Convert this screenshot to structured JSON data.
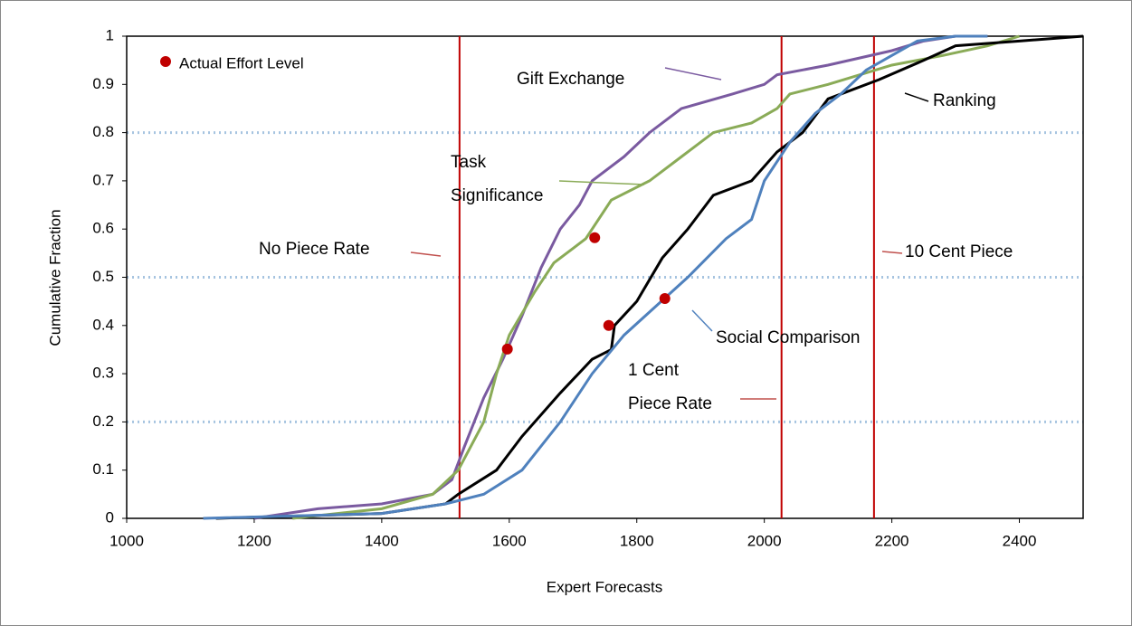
{
  "chart_data": {
    "type": "line",
    "xlabel": "Expert Forecasts",
    "ylabel": "Cumulative Fraction",
    "xlim": [
      1000,
      2500
    ],
    "xticks": [
      1000,
      1200,
      1400,
      1600,
      1800,
      2000,
      2200,
      2400
    ],
    "ylim": [
      0,
      1
    ],
    "yticks": [
      0,
      0.1,
      0.2,
      0.3,
      0.4,
      0.5,
      0.6,
      0.7,
      0.8,
      0.9,
      1
    ],
    "grid_values": [
      0.2,
      0.5,
      0.8
    ],
    "grid_color": "#a6c4e0",
    "vlines": [
      1522,
      2027,
      2172
    ],
    "vline_color": "#c00000",
    "series": [
      {
        "name": "Gift Exchange",
        "color": "#7a5aa0",
        "x": [
          1200,
          1300,
          1400,
          1480,
          1510,
          1530,
          1560,
          1590,
          1620,
          1650,
          1680,
          1710,
          1730,
          1780,
          1820,
          1870,
          1950,
          2000,
          2020,
          2100,
          2200,
          2250,
          2300,
          2350
        ],
        "values": [
          0,
          0.02,
          0.03,
          0.05,
          0.08,
          0.15,
          0.25,
          0.33,
          0.42,
          0.52,
          0.6,
          0.65,
          0.7,
          0.75,
          0.8,
          0.85,
          0.88,
          0.9,
          0.92,
          0.94,
          0.97,
          0.99,
          1,
          1
        ]
      },
      {
        "name": "Task Significance",
        "color": "#8aab57",
        "x": [
          1260,
          1400,
          1480,
          1520,
          1560,
          1580,
          1600,
          1640,
          1670,
          1720,
          1760,
          1820,
          1870,
          1920,
          1980,
          2020,
          2040,
          2100,
          2200,
          2280,
          2350,
          2400
        ],
        "values": [
          0,
          0.02,
          0.05,
          0.1,
          0.2,
          0.3,
          0.38,
          0.47,
          0.53,
          0.58,
          0.66,
          0.7,
          0.75,
          0.8,
          0.82,
          0.85,
          0.88,
          0.9,
          0.94,
          0.96,
          0.98,
          1
        ]
      },
      {
        "name": "Ranking",
        "color": "#000000",
        "x": [
          1140,
          1400,
          1500,
          1520,
          1580,
          1620,
          1680,
          1730,
          1760,
          1765,
          1800,
          1840,
          1880,
          1920,
          1980,
          2020,
          2060,
          2100,
          2180,
          2250,
          2300,
          2400,
          2500
        ],
        "values": [
          0,
          0.01,
          0.03,
          0.05,
          0.1,
          0.17,
          0.26,
          0.33,
          0.35,
          0.4,
          0.45,
          0.54,
          0.6,
          0.67,
          0.7,
          0.76,
          0.8,
          0.87,
          0.91,
          0.95,
          0.98,
          0.99,
          1
        ]
      },
      {
        "name": "Social Comparison",
        "color": "#4f81bd",
        "x": [
          1120,
          1400,
          1500,
          1560,
          1620,
          1680,
          1730,
          1780,
          1830,
          1880,
          1940,
          1980,
          2000,
          2040,
          2080,
          2120,
          2160,
          2200,
          2240,
          2300,
          2350
        ],
        "values": [
          0,
          0.01,
          0.03,
          0.05,
          0.1,
          0.2,
          0.3,
          0.38,
          0.44,
          0.5,
          0.58,
          0.62,
          0.7,
          0.78,
          0.84,
          0.88,
          0.93,
          0.96,
          0.99,
          1,
          1
        ]
      }
    ],
    "points": {
      "name": "Actual Effort Level",
      "color": "#c00000",
      "x": [
        1597,
        1734,
        1756,
        1844
      ],
      "values": [
        0.351,
        0.582,
        0.4,
        0.456
      ]
    },
    "annotations": [
      {
        "lines": [
          "Gift Exchange"
        ],
        "color": "#7a5aa0"
      },
      {
        "lines": [
          "Task",
          "Significance"
        ],
        "color": "#8aab57"
      },
      {
        "lines": [
          "No Piece Rate"
        ],
        "color": "#c0504d"
      },
      {
        "lines": [
          "10 Cent Piece"
        ],
        "color": "#c0504d"
      },
      {
        "lines": [
          "Social Comparison"
        ],
        "color": "#4f81bd"
      },
      {
        "lines": [
          "1 Cent",
          "Piece Rate"
        ],
        "color": "#c0504d"
      },
      {
        "lines": [
          "Ranking"
        ],
        "color": "#000000"
      }
    ]
  }
}
